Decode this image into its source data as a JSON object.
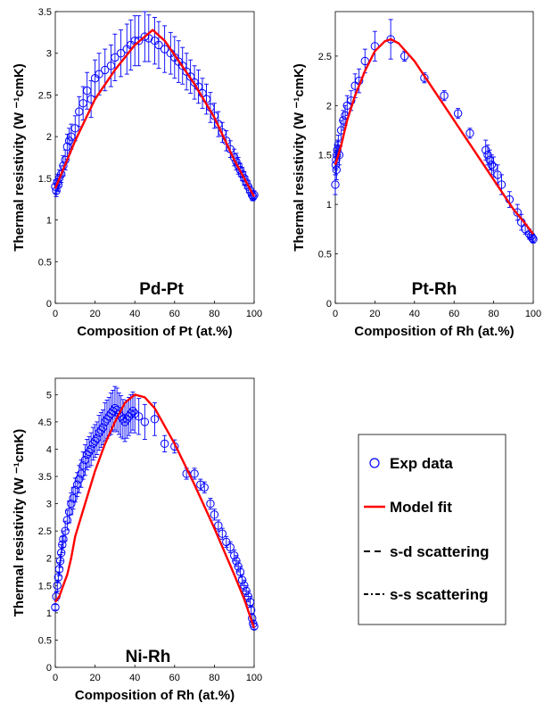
{
  "chart_data": {
    "type": "scatter",
    "colors": {
      "exp": "#0000ff",
      "model": "#ff0000",
      "axis": "#000000"
    },
    "legend": {
      "placement": "right",
      "entries": [
        {
          "label": "Exp data",
          "style": "marker-circle",
          "color": "#0000ff"
        },
        {
          "label": "Model fit",
          "style": "line-solid",
          "color": "#ff0000"
        },
        {
          "label": "s-d scattering",
          "style": "line-dashed",
          "color": "#000000"
        },
        {
          "label": "s-s scattering",
          "style": "line-dashdot",
          "color": "#000000"
        }
      ]
    },
    "panels": [
      {
        "id": "pd-pt",
        "label": "Pd-Pt",
        "xlabel": "Composition of Pt (at.%)",
        "ylabel": "Thermal resistivity (W ⁻¹cmK)",
        "xlim": [
          0,
          100
        ],
        "ylim": [
          0,
          3.5
        ],
        "xticks": [
          0,
          20,
          40,
          60,
          80,
          100
        ],
        "ytick_labels": [
          "0",
          "0.5",
          "1",
          "1.5",
          "2",
          "2.5",
          "3",
          "3.5"
        ],
        "model": {
          "x": [
            0,
            10,
            20,
            30,
            40,
            45,
            49,
            55,
            60,
            70,
            80,
            90,
            95,
            100
          ],
          "y": [
            1.38,
            1.95,
            2.45,
            2.8,
            3.1,
            3.2,
            3.28,
            3.15,
            2.98,
            2.63,
            2.23,
            1.72,
            1.5,
            1.28
          ]
        },
        "exp": {
          "x": [
            0,
            0.5,
            1,
            1.5,
            2,
            3,
            4,
            5,
            6,
            7,
            8,
            10,
            12,
            14,
            16,
            18,
            20,
            22,
            25,
            28,
            30,
            33,
            36,
            38,
            40,
            42,
            45,
            47,
            50,
            52,
            55,
            58,
            60,
            62,
            64,
            66,
            68,
            70,
            72,
            74,
            76,
            78,
            80,
            82,
            84,
            86,
            88,
            90,
            91,
            92,
            93,
            94,
            95,
            96,
            97,
            98,
            99,
            99.5,
            100
          ],
          "y": [
            1.4,
            1.35,
            1.45,
            1.42,
            1.5,
            1.55,
            1.65,
            1.72,
            1.88,
            1.95,
            2.0,
            2.1,
            2.3,
            2.4,
            2.55,
            2.45,
            2.7,
            2.75,
            2.8,
            2.85,
            2.95,
            3.0,
            3.05,
            3.1,
            3.15,
            3.15,
            3.2,
            3.18,
            3.15,
            3.1,
            3.05,
            3.0,
            2.95,
            2.9,
            2.85,
            2.78,
            2.72,
            2.65,
            2.6,
            2.52,
            2.45,
            2.35,
            2.25,
            2.15,
            2.05,
            1.95,
            1.85,
            1.75,
            1.7,
            1.65,
            1.6,
            1.55,
            1.5,
            1.45,
            1.4,
            1.35,
            1.3,
            1.28,
            1.3
          ],
          "err": [
            0.08,
            0.07,
            0.1,
            0.08,
            0.1,
            0.1,
            0.12,
            0.12,
            0.15,
            0.15,
            0.15,
            0.15,
            0.18,
            0.2,
            0.22,
            0.22,
            0.22,
            0.25,
            0.25,
            0.25,
            0.28,
            0.28,
            0.3,
            0.3,
            0.3,
            0.3,
            0.3,
            0.28,
            0.28,
            0.28,
            0.28,
            0.25,
            0.25,
            0.25,
            0.22,
            0.22,
            0.2,
            0.2,
            0.2,
            0.18,
            0.18,
            0.18,
            0.15,
            0.15,
            0.12,
            0.12,
            0.1,
            0.1,
            0.1,
            0.1,
            0.08,
            0.08,
            0.08,
            0.07,
            0.07,
            0.06,
            0.06,
            0.05,
            0.05
          ]
        }
      },
      {
        "id": "pt-rh",
        "label": "Pt-Rh",
        "xlabel": "Composition of Rh (at.%)",
        "ylabel": "Thermal resistivity (W ⁻¹cmK)",
        "xlim": [
          0,
          100
        ],
        "ylim": [
          0,
          2.95
        ],
        "xticks": [
          0,
          20,
          40,
          60,
          80,
          100
        ],
        "ytick_labels": [
          "0",
          "0.5",
          "1",
          "1.5",
          "2",
          "2.5"
        ],
        "model": {
          "x": [
            0,
            3,
            6,
            10,
            15,
            20,
            25,
            28,
            32,
            40,
            50,
            60,
            70,
            80,
            90,
            95,
            100
          ],
          "y": [
            1.4,
            1.6,
            1.85,
            2.1,
            2.35,
            2.55,
            2.65,
            2.67,
            2.63,
            2.45,
            2.15,
            1.85,
            1.55,
            1.25,
            0.95,
            0.83,
            0.7
          ]
        },
        "exp": {
          "x": [
            0,
            0.2,
            0.4,
            0.6,
            0.8,
            1,
            1.5,
            2,
            3,
            4,
            5,
            6,
            8,
            10,
            12,
            15,
            20,
            28,
            35,
            45,
            55,
            62,
            68,
            76,
            77,
            78,
            79,
            80,
            82,
            84,
            88,
            92,
            94,
            96,
            98,
            99,
            99.5,
            100
          ],
          "y": [
            1.2,
            1.4,
            1.45,
            1.35,
            1.5,
            1.55,
            1.6,
            1.5,
            1.75,
            1.85,
            1.9,
            2.0,
            2.05,
            2.2,
            2.25,
            2.45,
            2.6,
            2.67,
            2.5,
            2.28,
            2.1,
            1.92,
            1.72,
            1.55,
            1.5,
            1.45,
            1.4,
            1.38,
            1.3,
            1.2,
            1.05,
            0.92,
            0.82,
            0.75,
            0.7,
            0.68,
            0.66,
            0.65
          ],
          "err": [
            0.1,
            0.1,
            0.1,
            0.1,
            0.1,
            0.1,
            0.1,
            0.1,
            0.1,
            0.1,
            0.1,
            0.1,
            0.1,
            0.12,
            0.12,
            0.12,
            0.15,
            0.2,
            0.05,
            0.05,
            0.05,
            0.05,
            0.05,
            0.1,
            0.1,
            0.1,
            0.1,
            0.1,
            0.1,
            0.1,
            0.08,
            0.08,
            0.08,
            0.05,
            0.05,
            0.04,
            0.04,
            0.04
          ]
        }
      },
      {
        "id": "ni-rh",
        "label": "Ni-Rh",
        "xlabel": "Composition of Rh (at.%)",
        "ylabel": "Thermal resistivity (W ⁻¹cmK)",
        "xlim": [
          0,
          100
        ],
        "ylim": [
          0,
          5.3
        ],
        "xticks": [
          0,
          20,
          40,
          60,
          80,
          100
        ],
        "ytick_labels": [
          "0",
          "0.5",
          "1",
          "1.5",
          "2",
          "2.5",
          "3",
          "3.5",
          "4",
          "4.5",
          "5"
        ],
        "model": {
          "x": [
            0,
            2,
            4,
            6,
            8,
            10,
            15,
            20,
            25,
            30,
            35,
            40,
            45,
            50,
            60,
            70,
            80,
            90,
            95,
            100
          ],
          "y": [
            1.2,
            1.3,
            1.5,
            1.7,
            2.0,
            2.4,
            3.0,
            3.6,
            4.1,
            4.5,
            4.85,
            5.0,
            4.95,
            4.75,
            4.1,
            3.35,
            2.55,
            1.7,
            1.25,
            0.72
          ]
        },
        "exp": {
          "x": [
            0,
            0.5,
            1,
            1.5,
            2,
            2.5,
            3,
            3.5,
            4,
            5,
            6,
            7,
            8,
            9,
            10,
            11,
            12,
            13,
            14,
            15,
            16,
            17,
            18,
            19,
            20,
            21,
            22,
            23,
            24,
            25,
            26,
            27,
            28,
            29,
            30,
            31,
            32,
            33,
            34,
            35,
            36,
            37,
            38,
            39,
            40,
            42,
            45,
            50,
            55,
            60,
            66,
            70,
            73,
            75,
            78,
            80,
            82,
            84,
            86,
            88,
            90,
            91,
            92,
            93,
            94,
            95,
            96,
            97,
            98,
            98.5,
            99,
            99.5,
            100
          ],
          "y": [
            1.1,
            1.3,
            1.5,
            1.65,
            1.8,
            1.95,
            2.1,
            2.25,
            2.35,
            2.5,
            2.7,
            2.85,
            3.0,
            3.1,
            3.25,
            3.35,
            3.45,
            3.55,
            3.7,
            3.8,
            3.9,
            3.95,
            4.0,
            4.1,
            4.15,
            4.2,
            4.3,
            4.35,
            4.4,
            4.5,
            4.55,
            4.6,
            4.65,
            4.7,
            4.75,
            4.72,
            4.65,
            4.6,
            4.55,
            4.5,
            4.55,
            4.6,
            4.65,
            4.7,
            4.65,
            4.6,
            4.5,
            4.55,
            4.1,
            4.05,
            3.55,
            3.55,
            3.35,
            3.3,
            3.0,
            2.8,
            2.6,
            2.45,
            2.3,
            2.2,
            2.05,
            1.95,
            1.85,
            1.75,
            1.6,
            1.5,
            1.4,
            1.3,
            1.2,
            1.05,
            0.9,
            0.8,
            0.75
          ],
          "err": [
            0.05,
            0.08,
            0.1,
            0.1,
            0.12,
            0.12,
            0.15,
            0.15,
            0.15,
            0.18,
            0.18,
            0.2,
            0.2,
            0.2,
            0.22,
            0.22,
            0.25,
            0.25,
            0.25,
            0.28,
            0.28,
            0.28,
            0.3,
            0.3,
            0.3,
            0.3,
            0.32,
            0.32,
            0.32,
            0.35,
            0.35,
            0.35,
            0.38,
            0.38,
            0.4,
            0.4,
            0.38,
            0.38,
            0.36,
            0.36,
            0.35,
            0.35,
            0.35,
            0.35,
            0.35,
            0.33,
            0.32,
            0.3,
            0.15,
            0.12,
            0.1,
            0.1,
            0.1,
            0.1,
            0.1,
            0.1,
            0.1,
            0.1,
            0.1,
            0.1,
            0.1,
            0.1,
            0.1,
            0.1,
            0.1,
            0.1,
            0.1,
            0.1,
            0.1,
            0.08,
            0.08,
            0.06,
            0.05
          ]
        }
      }
    ]
  }
}
